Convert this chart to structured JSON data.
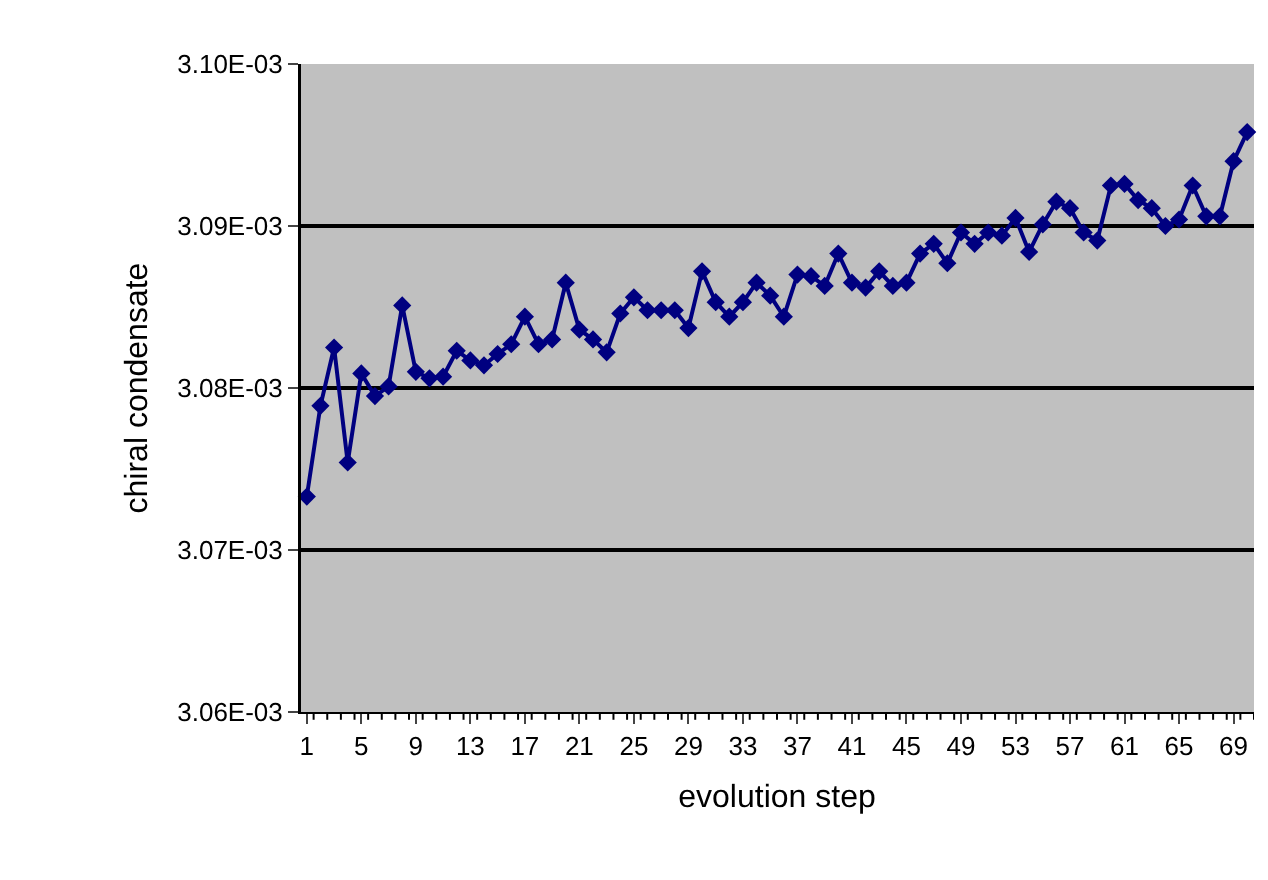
{
  "chart_data": {
    "type": "line",
    "xlabel": "evolution step",
    "ylabel": "chiral condensate",
    "categories": [
      "1",
      null,
      null,
      null,
      "5",
      null,
      null,
      null,
      "9",
      null,
      null,
      null,
      "13",
      null,
      null,
      null,
      "17",
      null,
      null,
      null,
      "21",
      null,
      null,
      null,
      "25",
      null,
      null,
      null,
      "29",
      null,
      null,
      null,
      "33",
      null,
      null,
      null,
      "37",
      null,
      null,
      null,
      "41",
      null,
      null,
      null,
      "45",
      null,
      null,
      null,
      "49",
      null,
      null,
      null,
      "53",
      null,
      null,
      null,
      "57",
      null,
      null,
      null,
      "61",
      null,
      null,
      null,
      "65",
      null,
      null,
      null,
      "69",
      null
    ],
    "series": [
      {
        "color": "#000080",
        "values": [
          0.0030733,
          0.0030789,
          0.0030825,
          0.0030754,
          0.0030809,
          0.0030795,
          0.0030801,
          0.0030851,
          0.003081,
          0.0030806,
          0.0030807,
          0.0030823,
          0.0030817,
          0.0030814,
          0.0030821,
          0.0030827,
          0.0030844,
          0.0030827,
          0.003083,
          0.0030865,
          0.0030836,
          0.003083,
          0.0030822,
          0.0030846,
          0.0030856,
          0.0030848,
          0.0030848,
          0.0030848,
          0.0030837,
          0.0030872,
          0.0030853,
          0.0030844,
          0.0030853,
          0.0030865,
          0.0030857,
          0.0030844,
          0.003087,
          0.0030869,
          0.0030863,
          0.0030883,
          0.0030865,
          0.0030862,
          0.0030872,
          0.0030863,
          0.0030865,
          0.0030883,
          0.0030889,
          0.0030877,
          0.0030896,
          0.0030889,
          0.0030896,
          0.0030894,
          0.0030905,
          0.0030884,
          0.0030901,
          0.0030915,
          0.0030911,
          0.0030896,
          0.0030891,
          0.0030925,
          0.0030926,
          0.0030916,
          0.0030911,
          0.00309,
          0.0030904,
          0.0030925,
          0.0030906,
          0.0030906,
          0.003094,
          0.0030958
        ]
      }
    ],
    "ylim": [
      0.00306,
      0.0031
    ],
    "yticks": [
      {
        "value": 0.00306,
        "label": "3.06E-03"
      },
      {
        "value": 0.00307,
        "label": "3.07E-03"
      },
      {
        "value": 0.00308,
        "label": "3.08E-03"
      },
      {
        "value": 0.00309,
        "label": "3.09E-03"
      },
      {
        "value": 0.0031,
        "label": "3.10E-03"
      }
    ],
    "grid": "y",
    "marker": "diamond",
    "line_style": "solid"
  }
}
